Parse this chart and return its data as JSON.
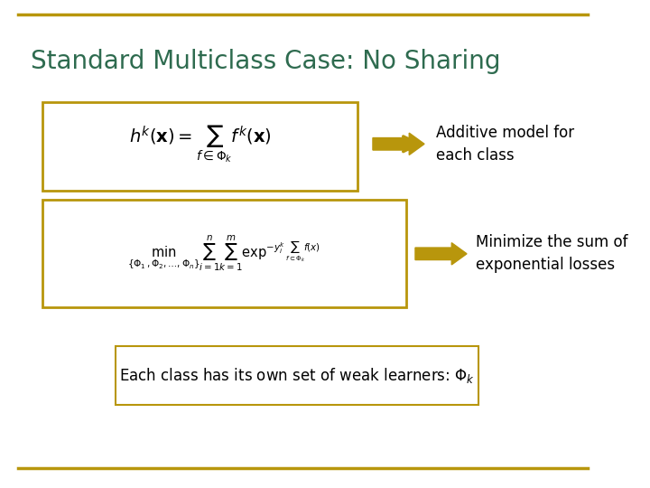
{
  "title": "Standard Multiclass Case: No Sharing",
  "title_color": "#2E6B4F",
  "title_fontsize": 20,
  "bg_color": "#FFFFFF",
  "border_color": "#B8960C",
  "box1_formula": "$h^k(\\mathbf{x}) = \\sum_{f \\in \\Phi_k} f^k(\\mathbf{x})$",
  "box2_formula": "$\\min_{\\{\\Phi_1, \\Phi_2, \\ldots, \\Phi_n\\}} \\sum_{i=1}^{n} \\sum_{k=1}^{m} \\exp^{-y_i^k \\sum_{f \\subset \\Phi_k} f(x)}$",
  "box3_text": "Each class has its own set of weak learners: $\\Phi_k$",
  "label1": "Additive model for\neach class",
  "label2": "Minimize the sum of\nexponential losses",
  "arrow_color": "#B8960C",
  "text_color": "#000000",
  "box_edge_color": "#B8960C",
  "formula_color": "#000000",
  "top_border_color": "#B8960C",
  "bottom_border_color": "#B8960C"
}
